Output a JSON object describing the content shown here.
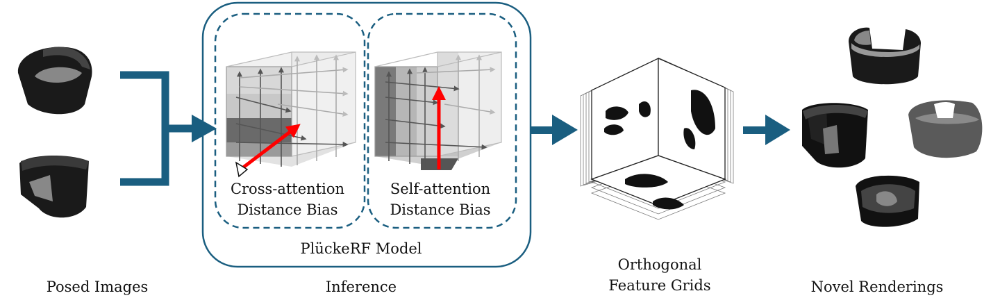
{
  "labels": {
    "posed_images": "Posed Images",
    "inference": "Inference",
    "feature_grids_line1": "Orthogonal",
    "feature_grids_line2": "Feature Grids",
    "novel_renderings": "Novel Renderings",
    "model_name": "PlückeRF Model",
    "cross_line1": "Cross-attention",
    "cross_line2": "Distance Bias",
    "self_line1": "Self-attention",
    "self_line2": "Distance Bias"
  },
  "colors": {
    "accent": "#1a5e80",
    "highlight_ray": "#ff0000"
  }
}
